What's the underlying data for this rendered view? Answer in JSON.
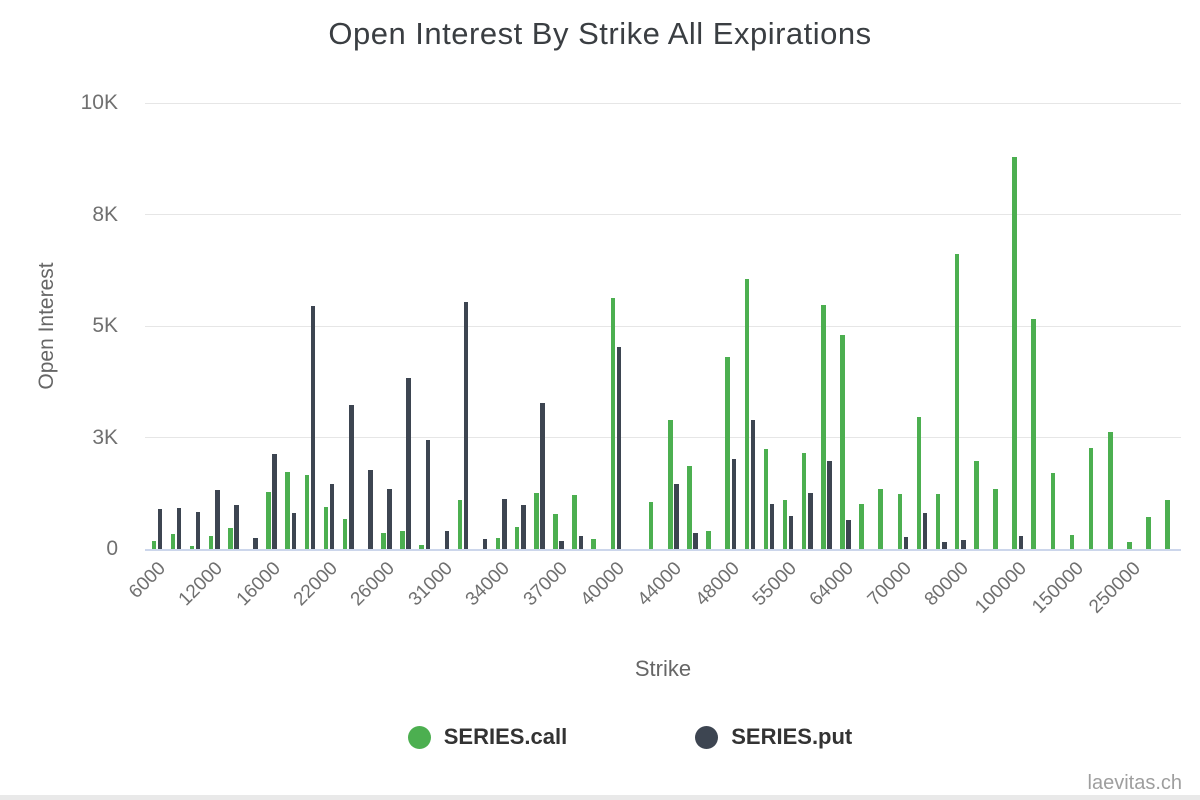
{
  "page": {
    "title": "Open Interest By Strike All Expirations",
    "watermark": "laevitas.ch"
  },
  "axes": {
    "y_title": "Open Interest",
    "x_title": "Strike",
    "y_tick_labels": [
      "0",
      "3K",
      "5K",
      "8K",
      "10K"
    ],
    "x_tick_labels": [
      "6000",
      "12000",
      "16000",
      "22000",
      "26000",
      "31000",
      "34000",
      "37000",
      "40000",
      "44000",
      "48000",
      "55000",
      "64000",
      "70000",
      "80000",
      "100000",
      "150000",
      "250000"
    ]
  },
  "legend": [
    {
      "label": "SERIES.call",
      "color": "#4caf50"
    },
    {
      "label": "SERIES.put",
      "color": "#3d4551"
    }
  ],
  "colors": {
    "call": "#4caf50",
    "put": "#3d4551",
    "gridline": "#e6e6e6",
    "axis_line": "#ccd6eb",
    "title_text": "#3a3e42",
    "tick_text": "#707070"
  },
  "chart_data": {
    "type": "bar",
    "title": "Open Interest By Strike All Expirations",
    "xlabel": "Strike",
    "ylabel": "Open Interest",
    "ylim": [
      0,
      10000
    ],
    "y_ticks": [
      0,
      2500,
      5000,
      7500,
      10000
    ],
    "y_tick_labels": [
      "0",
      "3K",
      "5K",
      "8K",
      "10K"
    ],
    "grid": true,
    "legend_position": "bottom",
    "note": "Grouped bars; only every third strike has a visible axis label (label empty string when not shown).",
    "series_names": [
      "SERIES.call",
      "SERIES.put"
    ],
    "groups": [
      {
        "strike": "6000",
        "call": 170,
        "put": 900
      },
      {
        "strike": "",
        "call": 330,
        "put": 920
      },
      {
        "strike": "",
        "call": 60,
        "put": 830
      },
      {
        "strike": "12000",
        "call": 290,
        "put": 1330
      },
      {
        "strike": "",
        "call": 460,
        "put": 980
      },
      {
        "strike": "",
        "call": 0,
        "put": 240
      },
      {
        "strike": "16000",
        "call": 1270,
        "put": 2120
      },
      {
        "strike": "",
        "call": 1720,
        "put": 810
      },
      {
        "strike": "",
        "call": 1670,
        "put": 5450
      },
      {
        "strike": "22000",
        "call": 940,
        "put": 1450
      },
      {
        "strike": "",
        "call": 680,
        "put": 3220
      },
      {
        "strike": "",
        "call": 0,
        "put": 1770
      },
      {
        "strike": "26000",
        "call": 350,
        "put": 1350
      },
      {
        "strike": "",
        "call": 400,
        "put": 3840
      },
      {
        "strike": "",
        "call": 80,
        "put": 2450
      },
      {
        "strike": "31000",
        "call": 0,
        "put": 400
      },
      {
        "strike": "",
        "call": 1100,
        "put": 5530
      },
      {
        "strike": "",
        "call": 0,
        "put": 220
      },
      {
        "strike": "34000",
        "call": 240,
        "put": 1120
      },
      {
        "strike": "",
        "call": 490,
        "put": 990
      },
      {
        "strike": "",
        "call": 1250,
        "put": 3270
      },
      {
        "strike": "37000",
        "call": 790,
        "put": 180
      },
      {
        "strike": "",
        "call": 1210,
        "put": 290
      },
      {
        "strike": "",
        "call": 220,
        "put": 0
      },
      {
        "strike": "40000",
        "call": 5620,
        "put": 4540
      },
      {
        "strike": "",
        "call": 0,
        "put": 0
      },
      {
        "strike": "",
        "call": 1050,
        "put": 0
      },
      {
        "strike": "44000",
        "call": 2900,
        "put": 1450
      },
      {
        "strike": "",
        "call": 1850,
        "put": 350
      },
      {
        "strike": "",
        "call": 400,
        "put": 0
      },
      {
        "strike": "48000",
        "call": 4300,
        "put": 2020
      },
      {
        "strike": "",
        "call": 6050,
        "put": 2890
      },
      {
        "strike": "",
        "call": 2250,
        "put": 1000
      },
      {
        "strike": "55000",
        "call": 1100,
        "put": 750
      },
      {
        "strike": "",
        "call": 2150,
        "put": 1250
      },
      {
        "strike": "",
        "call": 5480,
        "put": 1980
      },
      {
        "strike": "64000",
        "call": 4790,
        "put": 640
      },
      {
        "strike": "",
        "call": 1010,
        "put": 0
      },
      {
        "strike": "",
        "call": 1350,
        "put": 0
      },
      {
        "strike": "70000",
        "call": 1230,
        "put": 270
      },
      {
        "strike": "",
        "call": 2950,
        "put": 800
      },
      {
        "strike": "",
        "call": 1230,
        "put": 150
      },
      {
        "strike": "80000",
        "call": 6620,
        "put": 200
      },
      {
        "strike": "",
        "call": 1970,
        "put": 0
      },
      {
        "strike": "",
        "call": 1350,
        "put": 0
      },
      {
        "strike": "100000",
        "call": 8800,
        "put": 300
      },
      {
        "strike": "",
        "call": 5150,
        "put": 0
      },
      {
        "strike": "",
        "call": 1700,
        "put": 0
      },
      {
        "strike": "150000",
        "call": 320,
        "put": 0
      },
      {
        "strike": "",
        "call": 2270,
        "put": 0
      },
      {
        "strike": "",
        "call": 2630,
        "put": 0
      },
      {
        "strike": "250000",
        "call": 150,
        "put": 0
      },
      {
        "strike": "",
        "call": 720,
        "put": 0
      },
      {
        "strike": "",
        "call": 1100,
        "put": 0
      }
    ]
  }
}
